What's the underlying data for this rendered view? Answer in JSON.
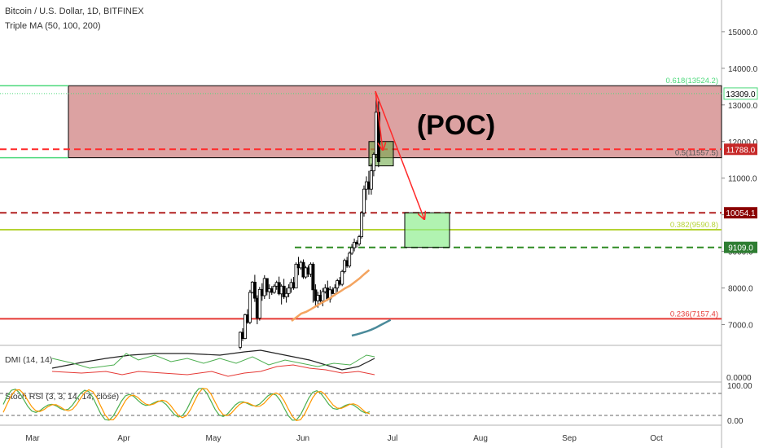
{
  "header": {
    "title": "Bitcoin / U.S. Dollar, 1D, BITFINEX",
    "indicator": "Triple MA (50, 100, 200)"
  },
  "annotation": "(POC)",
  "colors": {
    "candle": "#000000",
    "poc_fill": "#c97070",
    "target_fill": "#90ee90",
    "arrow": "#ff2a2a",
    "dash_red": "#ff2a2a",
    "dash_darkred": "#b22222",
    "dash_green": "#2e8b22",
    "fib_line": "#b5d334",
    "fib_0236_line": "#e53935",
    "fib_0618_line": "#4cd97b",
    "ma_orange": "#f4a460",
    "ma_teal": "#4a8a9a",
    "dmi_green": "#4caf50",
    "dmi_red": "#e53935",
    "dmi_black": "#222222",
    "stoch_green": "#4caf50",
    "stoch_orange": "#ff9800"
  },
  "chart_data": {
    "type": "candlestick",
    "symbol": "Bitcoin / U.S. Dollar",
    "interval": "1D",
    "exchange": "BITFINEX",
    "x_tick_labels": [
      "Mar",
      "Apr",
      "May",
      "Jun",
      "Jul",
      "Aug",
      "Sep",
      "Oct"
    ],
    "y_tick_labels": [
      "7000.0",
      "8000.0",
      "9000.0",
      "10000.0",
      "11000.0",
      "12000.0",
      "13000.0",
      "14000.0",
      "15000.0"
    ],
    "ylim": [
      6600,
      15900
    ],
    "price_tags": [
      {
        "label": "13309.0",
        "value": 13309
      },
      {
        "label": "11788.0",
        "value": 11788
      },
      {
        "label": "10054.1",
        "value": 10054.1
      },
      {
        "label": "9109.0",
        "value": 9109
      }
    ],
    "fib_levels": [
      {
        "label": "0.618(13524.2)",
        "value": 13524.2
      },
      {
        "label": "0.5(11557.5)",
        "value": 11557.5
      },
      {
        "label": "0.382(9590.8)",
        "value": 9590.8
      },
      {
        "label": "0.236(7157.4)",
        "value": 7157.4
      }
    ],
    "dashed_levels": [
      11788,
      10054.1,
      9109
    ],
    "candles_ohlc": [
      [
        6380,
        6810,
        6320,
        6790
      ],
      [
        6790,
        6900,
        6550,
        6620
      ],
      [
        6620,
        7300,
        6600,
        7270
      ],
      [
        7270,
        7420,
        7020,
        7060
      ],
      [
        7060,
        7950,
        7010,
        7880
      ],
      [
        7880,
        8190,
        7850,
        8160
      ],
      [
        8160,
        8360,
        7620,
        7720
      ],
      [
        7720,
        7800,
        7010,
        7180
      ],
      [
        7180,
        8030,
        7110,
        7960
      ],
      [
        7960,
        8130,
        7650,
        7790
      ],
      [
        7790,
        8350,
        7700,
        8260
      ],
      [
        8260,
        8250,
        7800,
        7900
      ],
      [
        7900,
        8100,
        7700,
        7980
      ],
      [
        7980,
        8050,
        7810,
        7880
      ],
      [
        7880,
        8100,
        7840,
        8050
      ],
      [
        8050,
        8200,
        7950,
        8150
      ],
      [
        8150,
        8310,
        7800,
        7840
      ],
      [
        7840,
        8100,
        7550,
        8050
      ],
      [
        8050,
        8250,
        7700,
        7760
      ],
      [
        7760,
        8000,
        7600,
        7850
      ],
      [
        7850,
        8100,
        7750,
        8000
      ],
      [
        8000,
        8250,
        7870,
        8150
      ],
      [
        8150,
        8300,
        7950,
        8000
      ],
      [
        8000,
        8700,
        7990,
        8650
      ],
      [
        8650,
        8850,
        8350,
        8550
      ],
      [
        8550,
        8750,
        8500,
        8700
      ],
      [
        8700,
        8780,
        8250,
        8300
      ],
      [
        8300,
        8600,
        8250,
        8550
      ],
      [
        8550,
        8620,
        8300,
        8380
      ],
      [
        8380,
        8700,
        8300,
        8650
      ],
      [
        8650,
        8700,
        7600,
        7950
      ],
      [
        7950,
        8100,
        7500,
        7650
      ],
      [
        7650,
        7900,
        7460,
        7800
      ],
      [
        7800,
        7950,
        7600,
        7650
      ],
      [
        7650,
        8000,
        7500,
        7900
      ],
      [
        7900,
        8100,
        7850,
        8000
      ],
      [
        8000,
        8200,
        7650,
        7700
      ],
      [
        7700,
        8050,
        7600,
        7950
      ],
      [
        7950,
        8020,
        7830,
        7850
      ],
      [
        7850,
        8100,
        7780,
        8000
      ],
      [
        8000,
        8250,
        7900,
        8200
      ],
      [
        8200,
        8300,
        8050,
        8100
      ],
      [
        8100,
        8500,
        8050,
        8450
      ],
      [
        8450,
        8800,
        8400,
        8750
      ],
      [
        8750,
        8850,
        8550,
        8600
      ],
      [
        8600,
        9000,
        8550,
        8950
      ],
      [
        8950,
        9200,
        8900,
        9100
      ],
      [
        9100,
        9350,
        9000,
        9250
      ],
      [
        9250,
        9300,
        9100,
        9200
      ],
      [
        9200,
        9450,
        9150,
        9400
      ],
      [
        9400,
        10100,
        9350,
        10050
      ],
      [
        10050,
        10800,
        9950,
        10700
      ],
      [
        10700,
        11050,
        10400,
        10900
      ],
      [
        10900,
        11200,
        10550,
        10700
      ],
      [
        10700,
        11400,
        10550,
        11200
      ],
      [
        11200,
        11700,
        11050,
        11650
      ],
      [
        11650,
        13309,
        11550,
        12800
      ],
      [
        12800,
        13100,
        11300,
        11450
      ]
    ],
    "moving_averages": [
      {
        "values": [
          7100,
          7200,
          7300,
          7350,
          7420,
          7500,
          7580,
          7650,
          7730,
          7820,
          7900,
          7990,
          8060,
          8160,
          8260,
          8380,
          8490
        ]
      },
      {
        "values": [
          6700,
          6730,
          6770,
          6810,
          6860,
          6920,
          6990,
          7060,
          7130
        ]
      }
    ],
    "dmi": {
      "label": "DMI (14, 14)",
      "y_tick_label": "0.0000"
    },
    "stoch_rsi": {
      "label": "Stoch RSI (3, 3, 14, 14, close)",
      "y_tick_labels": [
        "100.00",
        "0.00"
      ],
      "bands": [
        80,
        20
      ]
    }
  }
}
